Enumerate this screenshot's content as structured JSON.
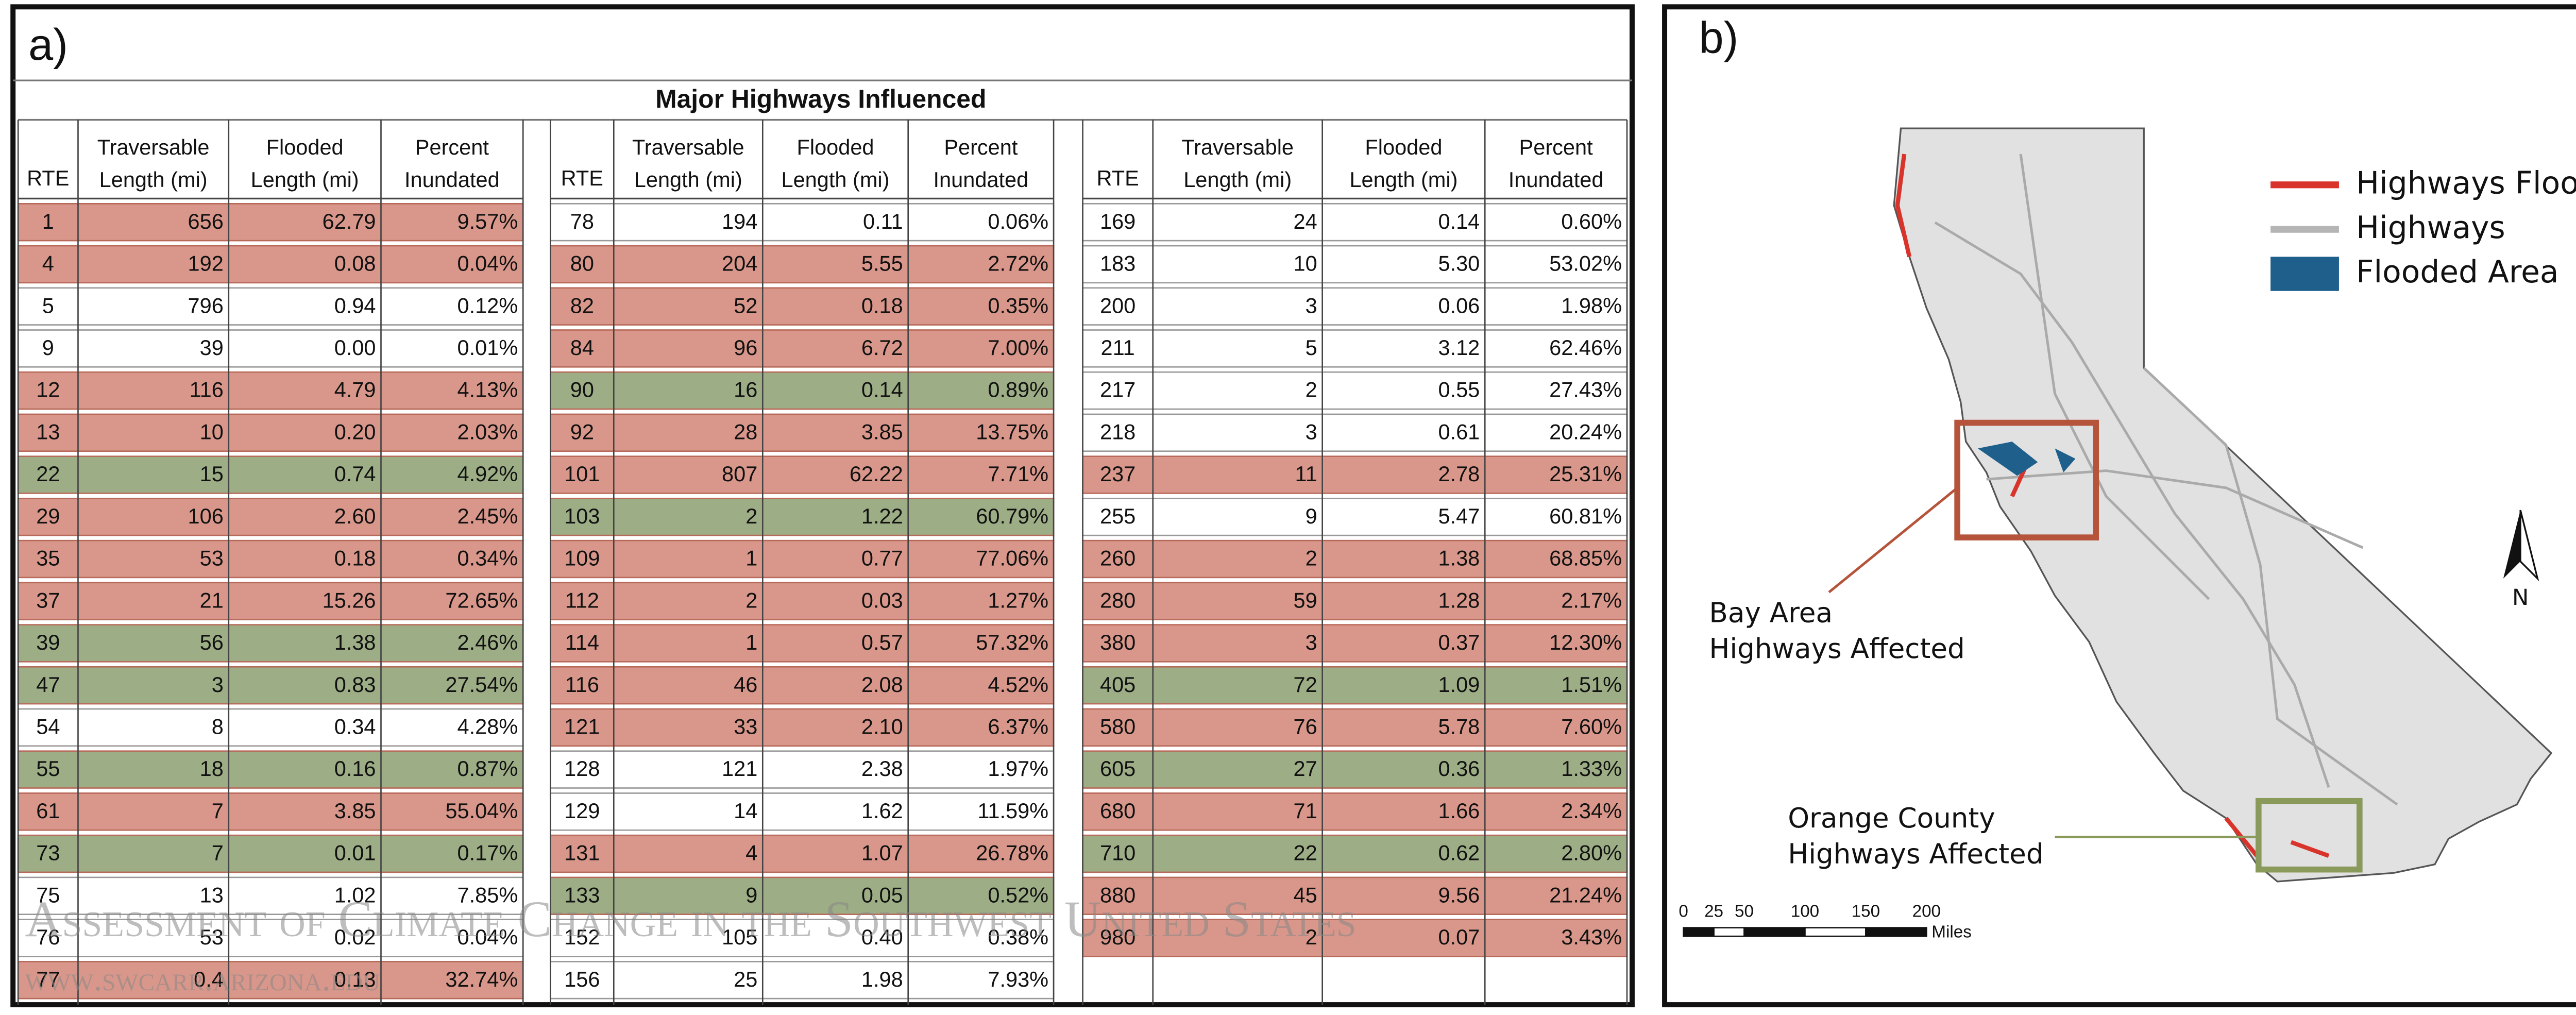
{
  "panel_a": {
    "label": "a)",
    "title": "Major Highways Influenced",
    "columns": [
      [
        "RTE"
      ],
      [
        "Traversable",
        "Length (mi)"
      ],
      [
        "Flooded",
        "Length (mi)"
      ],
      [
        "Percent",
        "Inundated"
      ]
    ],
    "groups": [
      {
        "rows": [
          {
            "cells": [
              "1",
              "656",
              "62.79",
              "9.57%"
            ],
            "color": "#d8978a"
          },
          {
            "cells": [
              "4",
              "192",
              "0.08",
              "0.04%"
            ],
            "color": "#d8978a"
          },
          {
            "cells": [
              "5",
              "796",
              "0.94",
              "0.12%"
            ],
            "color": "#ffffff"
          },
          {
            "cells": [
              "9",
              "39",
              "0.00",
              "0.01%"
            ],
            "color": "#ffffff"
          },
          {
            "cells": [
              "12",
              "116",
              "4.79",
              "4.13%"
            ],
            "color": "#d8978a"
          },
          {
            "cells": [
              "13",
              "10",
              "0.20",
              "2.03%"
            ],
            "color": "#d8978a"
          },
          {
            "cells": [
              "22",
              "15",
              "0.74",
              "4.92%"
            ],
            "color": "#9dad85"
          },
          {
            "cells": [
              "29",
              "106",
              "2.60",
              "2.45%"
            ],
            "color": "#d8978a"
          },
          {
            "cells": [
              "35",
              "53",
              "0.18",
              "0.34%"
            ],
            "color": "#d8978a"
          },
          {
            "cells": [
              "37",
              "21",
              "15.26",
              "72.65%"
            ],
            "color": "#d8978a"
          },
          {
            "cells": [
              "39",
              "56",
              "1.38",
              "2.46%"
            ],
            "color": "#9dad85"
          },
          {
            "cells": [
              "47",
              "3",
              "0.83",
              "27.54%"
            ],
            "color": "#9dad85"
          },
          {
            "cells": [
              "54",
              "8",
              "0.34",
              "4.28%"
            ],
            "color": "#ffffff"
          },
          {
            "cells": [
              "55",
              "18",
              "0.16",
              "0.87%"
            ],
            "color": "#9dad85"
          },
          {
            "cells": [
              "61",
              "7",
              "3.85",
              "55.04%"
            ],
            "color": "#d8978a"
          },
          {
            "cells": [
              "73",
              "7",
              "0.01",
              "0.17%"
            ],
            "color": "#9dad85"
          },
          {
            "cells": [
              "75",
              "13",
              "1.02",
              "7.85%"
            ],
            "color": "#ffffff"
          },
          {
            "cells": [
              "76",
              "53",
              "0.02",
              "0.04%"
            ],
            "color": "#ffffff"
          },
          {
            "cells": [
              "77",
              "0.4",
              "0.13",
              "32.74%"
            ],
            "color": "#d8978a"
          }
        ]
      },
      {
        "rows": [
          {
            "cells": [
              "78",
              "194",
              "0.11",
              "0.06%"
            ],
            "color": "#ffffff"
          },
          {
            "cells": [
              "80",
              "204",
              "5.55",
              "2.72%"
            ],
            "color": "#d8978a"
          },
          {
            "cells": [
              "82",
              "52",
              "0.18",
              "0.35%"
            ],
            "color": "#d8978a"
          },
          {
            "cells": [
              "84",
              "96",
              "6.72",
              "7.00%"
            ],
            "color": "#d8978a"
          },
          {
            "cells": [
              "90",
              "16",
              "0.14",
              "0.89%"
            ],
            "color": "#9dad85"
          },
          {
            "cells": [
              "92",
              "28",
              "3.85",
              "13.75%"
            ],
            "color": "#d8978a"
          },
          {
            "cells": [
              "101",
              "807",
              "62.22",
              "7.71%"
            ],
            "color": "#d8978a"
          },
          {
            "cells": [
              "103",
              "2",
              "1.22",
              "60.79%"
            ],
            "color": "#9dad85"
          },
          {
            "cells": [
              "109",
              "1",
              "0.77",
              "77.06%"
            ],
            "color": "#d8978a"
          },
          {
            "cells": [
              "112",
              "2",
              "0.03",
              "1.27%"
            ],
            "color": "#d8978a"
          },
          {
            "cells": [
              "114",
              "1",
              "0.57",
              "57.32%"
            ],
            "color": "#d8978a"
          },
          {
            "cells": [
              "116",
              "46",
              "2.08",
              "4.52%"
            ],
            "color": "#d8978a"
          },
          {
            "cells": [
              "121",
              "33",
              "2.10",
              "6.37%"
            ],
            "color": "#d8978a"
          },
          {
            "cells": [
              "128",
              "121",
              "2.38",
              "1.97%"
            ],
            "color": "#ffffff"
          },
          {
            "cells": [
              "129",
              "14",
              "1.62",
              "11.59%"
            ],
            "color": "#ffffff"
          },
          {
            "cells": [
              "131",
              "4",
              "1.07",
              "26.78%"
            ],
            "color": "#d8978a"
          },
          {
            "cells": [
              "133",
              "9",
              "0.05",
              "0.52%"
            ],
            "color": "#9dad85"
          },
          {
            "cells": [
              "152",
              "105",
              "0.40",
              "0.38%"
            ],
            "color": "#ffffff"
          },
          {
            "cells": [
              "156",
              "25",
              "1.98",
              "7.93%"
            ],
            "color": "#ffffff"
          }
        ]
      },
      {
        "rows": [
          {
            "cells": [
              "169",
              "24",
              "0.14",
              "0.60%"
            ],
            "color": "#ffffff"
          },
          {
            "cells": [
              "183",
              "10",
              "5.30",
              "53.02%"
            ],
            "color": "#ffffff"
          },
          {
            "cells": [
              "200",
              "3",
              "0.06",
              "1.98%"
            ],
            "color": "#ffffff"
          },
          {
            "cells": [
              "211",
              "5",
              "3.12",
              "62.46%"
            ],
            "color": "#ffffff"
          },
          {
            "cells": [
              "217",
              "2",
              "0.55",
              "27.43%"
            ],
            "color": "#ffffff"
          },
          {
            "cells": [
              "218",
              "3",
              "0.61",
              "20.24%"
            ],
            "color": "#ffffff"
          },
          {
            "cells": [
              "237",
              "11",
              "2.78",
              "25.31%"
            ],
            "color": "#d8978a"
          },
          {
            "cells": [
              "255",
              "9",
              "5.47",
              "60.81%"
            ],
            "color": "#ffffff"
          },
          {
            "cells": [
              "260",
              "2",
              "1.38",
              "68.85%"
            ],
            "color": "#d8978a"
          },
          {
            "cells": [
              "280",
              "59",
              "1.28",
              "2.17%"
            ],
            "color": "#d8978a"
          },
          {
            "cells": [
              "380",
              "3",
              "0.37",
              "12.30%"
            ],
            "color": "#d8978a"
          },
          {
            "cells": [
              "405",
              "72",
              "1.09",
              "1.51%"
            ],
            "color": "#9dad85"
          },
          {
            "cells": [
              "580",
              "76",
              "5.78",
              "7.60%"
            ],
            "color": "#d8978a"
          },
          {
            "cells": [
              "605",
              "27",
              "0.36",
              "1.33%"
            ],
            "color": "#9dad85"
          },
          {
            "cells": [
              "680",
              "71",
              "1.66",
              "2.34%"
            ],
            "color": "#d8978a"
          },
          {
            "cells": [
              "710",
              "22",
              "0.62",
              "2.80%"
            ],
            "color": "#9dad85"
          },
          {
            "cells": [
              "880",
              "45",
              "9.56",
              "21.24%"
            ],
            "color": "#d8978a"
          },
          {
            "cells": [
              "980",
              "2",
              "0.07",
              "3.43%"
            ],
            "color": "#d8978a"
          }
        ]
      }
    ],
    "watermark": [
      "Assessment of Climate Change in the Southwest United States",
      "www.swcarr.arizona.edu"
    ]
  },
  "panel_b": {
    "label": "b)",
    "legend": [
      {
        "name": "Highways Flooded",
        "color": "#d9342b"
      },
      {
        "name": "Highways",
        "color": "#b5b5b5"
      },
      {
        "name": "Flooded Area",
        "color": "#1f5f8b"
      }
    ],
    "bay_area": [
      "Bay Area",
      "Highways Affected"
    ],
    "orange_county": [
      "Orange County",
      "Highways Affected"
    ],
    "north": "N",
    "scale": {
      "ticks": [
        0,
        25,
        50,
        100,
        150,
        200
      ],
      "unit": "Miles"
    }
  }
}
